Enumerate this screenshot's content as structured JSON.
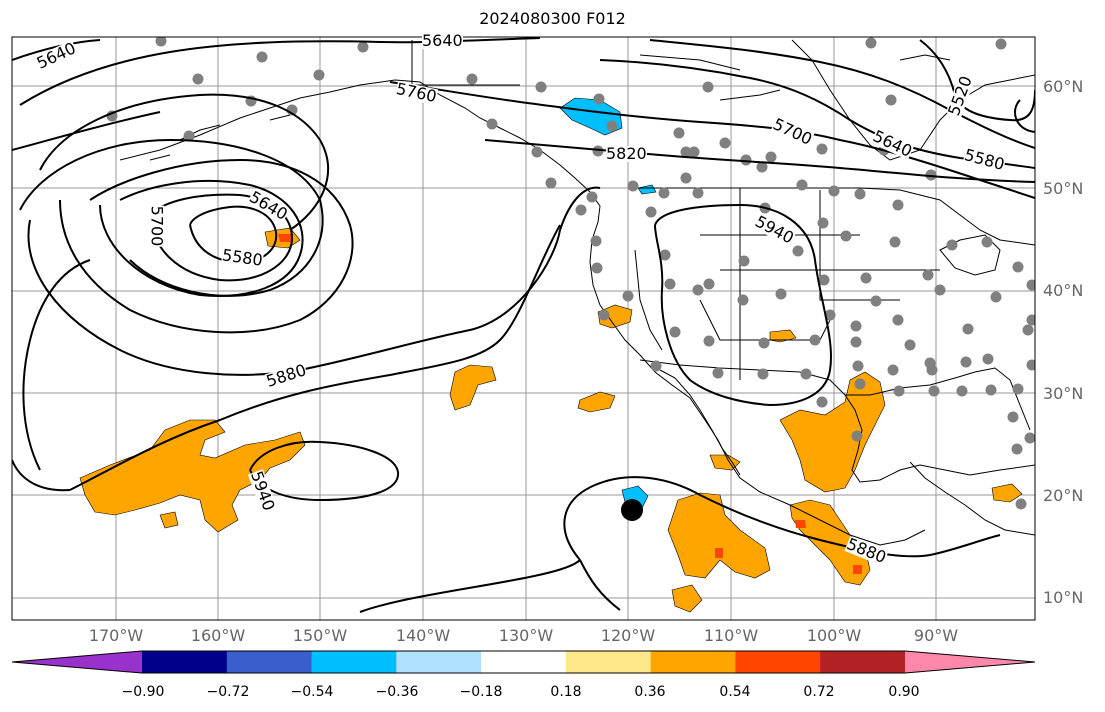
{
  "title": "2024080300 F012",
  "lat_labels": [
    "60°N",
    "50°N",
    "40°N",
    "30°N",
    "20°N",
    "10°N"
  ],
  "lon_labels": [
    "170°W",
    "160°W",
    "150°W",
    "140°W",
    "130°W",
    "120°W",
    "110°W",
    "100°W",
    "90°W"
  ],
  "contour_labels": [
    "5640",
    "5640",
    "5760",
    "5820",
    "5700",
    "5640",
    "5580",
    "5520",
    "5700",
    "5640",
    "5580",
    "5940",
    "5880",
    "5940",
    "5880"
  ],
  "colorbar": {
    "tick_labels": [
      "−0.90",
      "−0.72",
      "−0.54",
      "−0.36",
      "−0.18",
      "0.18",
      "0.36",
      "0.54",
      "0.72",
      "0.90"
    ],
    "colors": [
      "#9932cc",
      "#00008b",
      "#3a5fcd",
      "#00bfff",
      "#b0e2ff",
      "#ffffff",
      "#ffe88a",
      "#ffa500",
      "#ff4500",
      "#b22222",
      "#ff88aa"
    ]
  },
  "colors": {
    "contour": "#000000",
    "coast": "#000000",
    "grid": "#999999",
    "station": "#808080",
    "positive_fill": "#ffa500",
    "strong_fill": "#ff4500",
    "negative_fill": "#00bfff"
  }
}
